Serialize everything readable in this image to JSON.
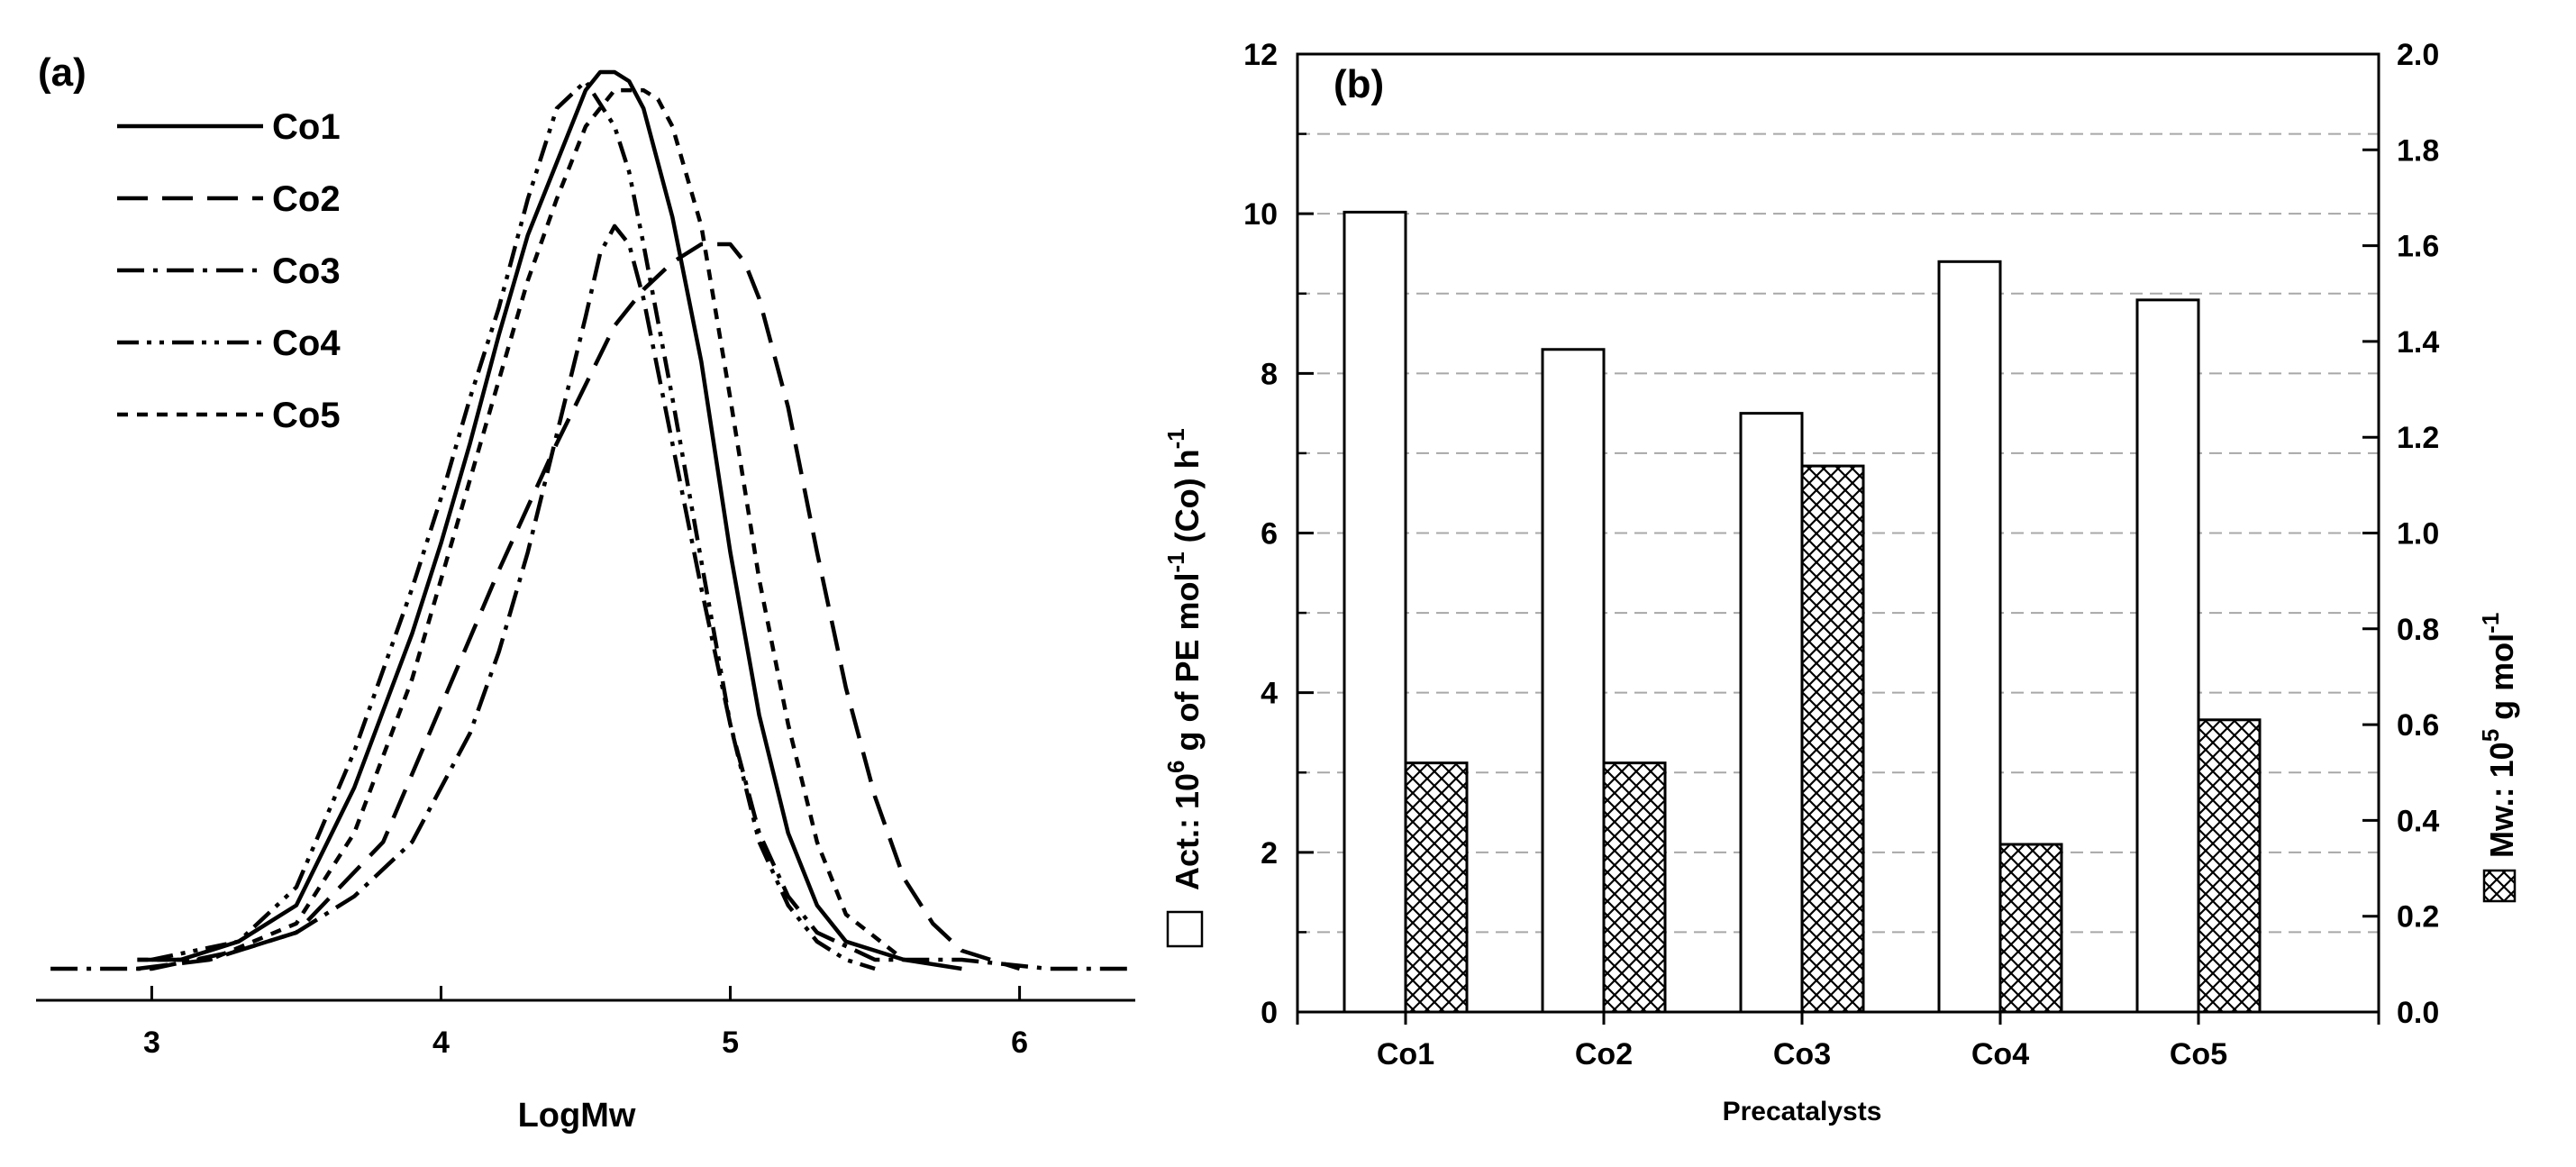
{
  "chart_data": [
    {
      "panel": "(a)",
      "type": "line",
      "xlabel": "LogMw",
      "ylabel": "",
      "xlim": [
        2.6,
        6.4
      ],
      "ylim": [
        0,
        1
      ],
      "xticks": [
        "3",
        "4",
        "5",
        "6"
      ],
      "grid": false,
      "legend_position": "top-left",
      "series": [
        {
          "name": "Co1",
          "style": "solid",
          "x": [
            2.95,
            3.1,
            3.3,
            3.5,
            3.7,
            3.9,
            4.0,
            4.1,
            4.2,
            4.3,
            4.4,
            4.5,
            4.55,
            4.6,
            4.65,
            4.7,
            4.8,
            4.9,
            5.0,
            5.1,
            5.2,
            5.3,
            5.4,
            5.5,
            5.6,
            5.8
          ],
          "y": [
            0.01,
            0.01,
            0.03,
            0.07,
            0.2,
            0.37,
            0.47,
            0.58,
            0.7,
            0.81,
            0.89,
            0.97,
            0.99,
            0.99,
            0.98,
            0.95,
            0.83,
            0.67,
            0.46,
            0.28,
            0.15,
            0.07,
            0.03,
            0.02,
            0.01,
            0.0
          ]
        },
        {
          "name": "Co2",
          "style": "long-dash",
          "x": [
            2.95,
            3.2,
            3.5,
            3.8,
            4.0,
            4.2,
            4.4,
            4.6,
            4.7,
            4.8,
            4.9,
            5.0,
            5.05,
            5.1,
            5.2,
            5.3,
            5.4,
            5.5,
            5.6,
            5.7,
            5.8,
            5.9,
            6.0
          ],
          "y": [
            0.0,
            0.01,
            0.04,
            0.14,
            0.29,
            0.44,
            0.58,
            0.71,
            0.75,
            0.78,
            0.8,
            0.8,
            0.78,
            0.74,
            0.62,
            0.46,
            0.31,
            0.19,
            0.1,
            0.05,
            0.02,
            0.01,
            0.0
          ]
        },
        {
          "name": "Co3",
          "style": "dash-dot",
          "x": [
            2.65,
            3.0,
            3.3,
            3.5,
            3.7,
            3.9,
            4.1,
            4.2,
            4.3,
            4.4,
            4.5,
            4.55,
            4.6,
            4.65,
            4.7,
            4.8,
            4.9,
            5.0,
            5.1,
            5.2,
            5.3,
            5.5,
            5.8,
            6.1,
            6.4
          ],
          "y": [
            0.0,
            0.0,
            0.02,
            0.04,
            0.08,
            0.14,
            0.26,
            0.35,
            0.46,
            0.59,
            0.72,
            0.79,
            0.82,
            0.8,
            0.74,
            0.58,
            0.42,
            0.27,
            0.15,
            0.08,
            0.04,
            0.01,
            0.01,
            0.0,
            0.0
          ]
        },
        {
          "name": "Co4",
          "style": "dash-dot-dot",
          "x": [
            3.0,
            3.3,
            3.5,
            3.7,
            3.9,
            4.0,
            4.1,
            4.2,
            4.3,
            4.4,
            4.5,
            4.6,
            4.65,
            4.7,
            4.8,
            4.9,
            5.0,
            5.1,
            5.2,
            5.3,
            5.4,
            5.5
          ],
          "y": [
            0.01,
            0.03,
            0.09,
            0.24,
            0.42,
            0.52,
            0.63,
            0.73,
            0.85,
            0.95,
            0.98,
            0.93,
            0.88,
            0.8,
            0.63,
            0.45,
            0.27,
            0.14,
            0.07,
            0.03,
            0.01,
            0.0
          ]
        },
        {
          "name": "Co5",
          "style": "short-dash",
          "x": [
            2.95,
            3.2,
            3.5,
            3.7,
            3.9,
            4.0,
            4.1,
            4.2,
            4.3,
            4.4,
            4.5,
            4.6,
            4.7,
            4.75,
            4.8,
            4.9,
            5.0,
            5.1,
            5.2,
            5.3,
            5.4,
            5.6
          ],
          "y": [
            0.01,
            0.01,
            0.05,
            0.15,
            0.32,
            0.43,
            0.54,
            0.65,
            0.76,
            0.85,
            0.93,
            0.97,
            0.97,
            0.96,
            0.93,
            0.82,
            0.63,
            0.43,
            0.27,
            0.14,
            0.06,
            0.01
          ]
        }
      ]
    },
    {
      "panel": "(b)",
      "type": "bar",
      "title": "",
      "xlabel": "Precatalysts",
      "categories": [
        "Co1",
        "Co2",
        "Co3",
        "Co4",
        "Co5"
      ],
      "grid": true,
      "series": [
        {
          "name": "Act.",
          "axis": "left",
          "pattern": "open",
          "values": [
            10.02,
            8.3,
            7.5,
            9.4,
            8.92
          ]
        },
        {
          "name": "Mw",
          "axis": "right",
          "pattern": "crosshatch",
          "values": [
            0.52,
            0.52,
            1.14,
            0.35,
            0.61
          ]
        }
      ],
      "ylim_left": [
        0,
        12
      ],
      "yticks_left": [
        "0",
        "2",
        "4",
        "6",
        "8",
        "10",
        "12"
      ],
      "ylim_right": [
        0,
        2.0
      ],
      "yticks_right": [
        "0.0",
        "0.2",
        "0.4",
        "0.6",
        "0.8",
        "1.0",
        "1.2",
        "1.4",
        "1.6",
        "1.8",
        "2.0"
      ],
      "ylabel_left": {
        "prefix": "Act.: 10",
        "sup1": "6",
        "middle": " g of PE mol",
        "sup2": "-1",
        "suffix": " (Co) h",
        "sup3": "-1"
      },
      "ylabel_right": {
        "prefix": "Mw.: 10",
        "sup1": "5",
        "middle": " g mol",
        "sup2": "-1"
      }
    }
  ]
}
